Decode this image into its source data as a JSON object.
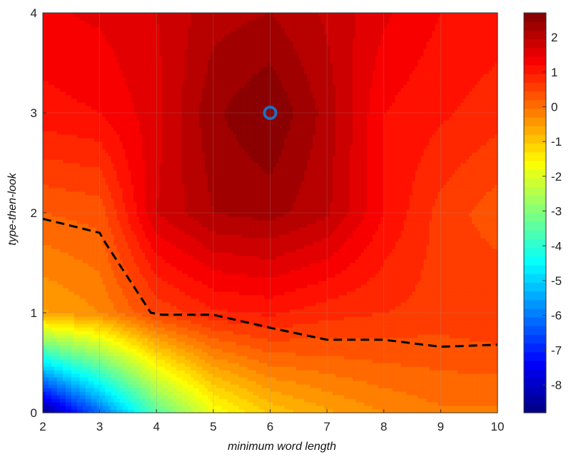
{
  "chart_data": {
    "type": "heatmap",
    "title": "",
    "xlabel": "minimum word length",
    "ylabel": "type-then-look",
    "xlim": [
      2,
      10
    ],
    "ylim": [
      0,
      4
    ],
    "x_ticks": [
      "2",
      "3",
      "4",
      "5",
      "6",
      "7",
      "8",
      "9",
      "10"
    ],
    "y_ticks": [
      "0",
      "1",
      "2",
      "3",
      "4"
    ],
    "colorbar": {
      "colormap": "jet",
      "range": [
        -8.8,
        2.7
      ],
      "ticks": [
        "2",
        "1",
        "0",
        "-1",
        "-2",
        "-3",
        "-4",
        "-5",
        "-6",
        "-7",
        "-8"
      ]
    },
    "grid": true,
    "grid_x": [
      2,
      3,
      4,
      5,
      6,
      7,
      8,
      9,
      10
    ],
    "grid_y": [
      0,
      1,
      2,
      3,
      4
    ],
    "z": [
      [
        -8.7,
        -6.2,
        -3.5,
        -1.8,
        -1.0,
        -0.6,
        -0.3,
        -0.1,
        -0.1
      ],
      [
        -0.6,
        -0.3,
        0.5,
        0.9,
        1.0,
        0.8,
        0.7,
        0.6,
        0.7
      ],
      [
        0.2,
        0.3,
        1.7,
        2.2,
        2.3,
        2.0,
        1.2,
        0.6,
        0.3
      ],
      [
        1.1,
        1.2,
        1.6,
        2.4,
        2.7,
        2.1,
        1.2,
        1.0,
        0.8
      ],
      [
        1.4,
        1.5,
        1.7,
        2.1,
        2.2,
        1.9,
        1.5,
        1.2,
        1.1
      ]
    ],
    "optimum_marker": {
      "x": 6,
      "y": 3,
      "color": "#1f6fc0"
    },
    "boundary_line": {
      "style": "dashed",
      "color": "#000000",
      "x": [
        2,
        3,
        3.1,
        3.9,
        4.1,
        5,
        6,
        7,
        8,
        9,
        10
      ],
      "y": [
        1.94,
        1.8,
        1.7,
        1.0,
        0.98,
        0.98,
        0.85,
        0.73,
        0.73,
        0.66,
        0.68
      ]
    }
  }
}
